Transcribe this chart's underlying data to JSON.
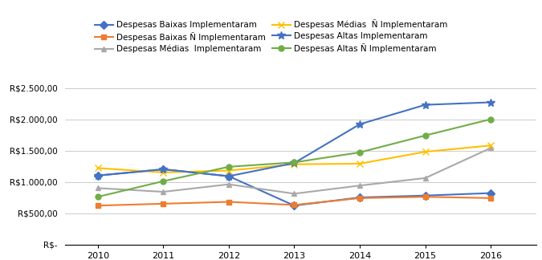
{
  "years": [
    2010,
    2011,
    2012,
    2013,
    2014,
    2015,
    2016
  ],
  "series": [
    {
      "label": "Despesas Baixas Implementaram",
      "values": [
        1100,
        1200,
        1090,
        620,
        750,
        780,
        820
      ],
      "color": "#4472C4",
      "marker": "D",
      "markersize": 5
    },
    {
      "label": "Despesas Baixas Ñ Implementaram",
      "values": [
        620,
        650,
        680,
        630,
        740,
        760,
        740
      ],
      "color": "#ED7D31",
      "marker": "s",
      "markersize": 5
    },
    {
      "label": "Despesas Médias  Implementaram",
      "values": [
        900,
        840,
        960,
        810,
        940,
        1060,
        1540
      ],
      "color": "#A9A9A9",
      "marker": "^",
      "markersize": 5
    },
    {
      "label": "Despesas Médias  Ñ Implementaram",
      "values": [
        1220,
        1150,
        1180,
        1280,
        1290,
        1480,
        1580
      ],
      "color": "#FFC000",
      "marker": "x",
      "markersize": 6
    },
    {
      "label": "Despesas Altas Implementaram",
      "values": [
        1100,
        1200,
        1090,
        1300,
        1920,
        2230,
        2270
      ],
      "color": "#4472C4",
      "marker": "*",
      "markersize": 7
    },
    {
      "label": "Despesas Altas Ñ Implementaram",
      "values": [
        760,
        1010,
        1240,
        1310,
        1470,
        1740,
        2000
      ],
      "color": "#70AD47",
      "marker": "o",
      "markersize": 5
    }
  ],
  "yticks": [
    0,
    500,
    1000,
    1500,
    2000,
    2500
  ],
  "ytick_labels": [
    "R$-",
    "R$500,00",
    "R$1.000,00",
    "R$1.500,00",
    "R$2.000,00",
    "R$2.500,00"
  ],
  "ylim": [
    0,
    2700
  ],
  "xlim": [
    2009.5,
    2016.7
  ],
  "background_color": "#FFFFFF",
  "grid_color": "#CCCCCC"
}
